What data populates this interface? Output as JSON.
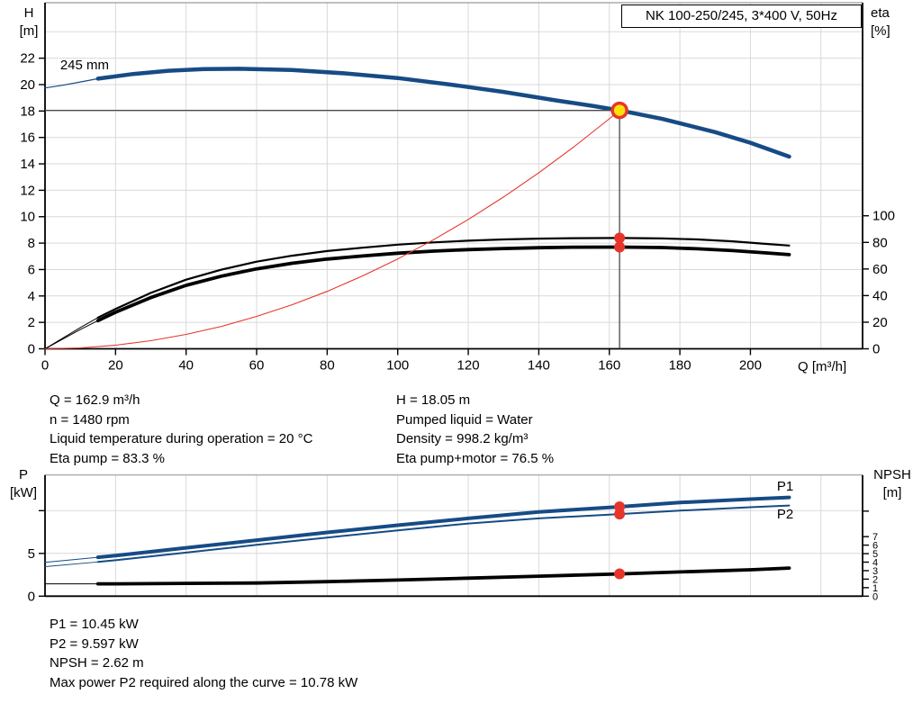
{
  "header": {
    "title": "NK 100-250/245, 3*400 V, 50Hz"
  },
  "axis_labels": {
    "h1": "H",
    "h2": "[m]",
    "eta1": "eta",
    "eta2": "[%]",
    "p1": "P",
    "p2": "[kW]",
    "npsh1": "NPSH",
    "npsh2": "[m]",
    "q": "Q [m³/h]"
  },
  "info_top": {
    "left": [
      "Q = 162.9 m³/h",
      "n = 1480 rpm",
      "Liquid temperature during operation = 20 °C",
      "Eta pump = 83.3 %"
    ],
    "right": [
      "H = 18.05 m",
      "Pumped liquid = Water",
      "Density = 998.2 kg/m³",
      "Eta pump+motor = 76.5 %"
    ]
  },
  "info_bottom": [
    "P1 = 10.45 kW",
    "P2 = 9.597 kW",
    "NPSH = 2.62 m",
    "Max power P2 required along the curve = 10.78 kW"
  ],
  "colors": {
    "blue": "#164b85",
    "black": "#000000",
    "red": "#e6352b",
    "duty_yellow": "#ffe10a",
    "grid": "#d9d9d9",
    "border": "#9b9b9b",
    "crosshair": "#4a4a4a"
  },
  "chart_data": [
    {
      "id": "qh",
      "type": "line",
      "title": "QH and efficiency curves",
      "x": {
        "label": "Q [m³/h]",
        "min": 0,
        "max": 231.8,
        "ticks": [
          [
            0,
            "0"
          ],
          [
            20,
            "20"
          ],
          [
            40,
            "40"
          ],
          [
            60,
            "60"
          ],
          [
            80,
            "80"
          ],
          [
            100,
            "100"
          ],
          [
            120,
            "120"
          ],
          [
            140,
            "140"
          ],
          [
            160,
            "160"
          ],
          [
            180,
            "180"
          ],
          [
            200,
            "200"
          ]
        ],
        "grid": [
          20,
          40,
          60,
          80,
          100,
          120,
          140,
          160,
          180,
          200,
          220
        ]
      },
      "y_left": {
        "label": "H [m]",
        "min": 0,
        "max": 26.2,
        "ticks": [
          [
            0,
            "0"
          ],
          [
            2,
            "2"
          ],
          [
            4,
            "4"
          ],
          [
            6,
            "6"
          ],
          [
            8,
            "8"
          ],
          [
            10,
            "10"
          ],
          [
            12,
            "12"
          ],
          [
            14,
            "14"
          ],
          [
            16,
            "16"
          ],
          [
            18,
            "18"
          ],
          [
            20,
            "20"
          ],
          [
            22,
            "22"
          ]
        ],
        "grid": [
          2,
          4,
          6,
          8,
          10,
          12,
          14,
          16,
          18,
          20,
          22,
          24
        ]
      },
      "y_right": {
        "label": "eta [%]",
        "min": 0,
        "max": 260.2,
        "ticks": [
          [
            0,
            "0"
          ],
          [
            20,
            "20"
          ],
          [
            40,
            "40"
          ],
          [
            60,
            "60"
          ],
          [
            80,
            "80"
          ],
          [
            100,
            "100"
          ]
        ]
      },
      "series": [
        {
          "name": "eta-pump",
          "axis": "right",
          "color": "black",
          "thin_until": 15,
          "w_thin": 1,
          "w_thick": 2.2,
          "points": [
            [
              0,
              0
            ],
            [
              10,
              16
            ],
            [
              15,
              23.5
            ],
            [
              20,
              30
            ],
            [
              30,
              42
            ],
            [
              40,
              52
            ],
            [
              50,
              59.5
            ],
            [
              60,
              65.5
            ],
            [
              70,
              70
            ],
            [
              80,
              73.5
            ],
            [
              90,
              76
            ],
            [
              100,
              78.3
            ],
            [
              110,
              80
            ],
            [
              120,
              81.3
            ],
            [
              130,
              82.2
            ],
            [
              140,
              82.8
            ],
            [
              150,
              83.2
            ],
            [
              162.9,
              83.3
            ],
            [
              175,
              83
            ],
            [
              185,
              82.2
            ],
            [
              195,
              80.8
            ],
            [
              205,
              78.8
            ],
            [
              211,
              77.6
            ]
          ]
        },
        {
          "name": "eta-pump-motor",
          "axis": "right",
          "color": "black",
          "thin_until": 15,
          "w_thin": 1,
          "w_thick": 3.8,
          "points": [
            [
              0,
              0
            ],
            [
              10,
              14.5
            ],
            [
              15,
              21.2
            ],
            [
              20,
              27.5
            ],
            [
              30,
              38.5
            ],
            [
              40,
              47.7
            ],
            [
              50,
              54.6
            ],
            [
              60,
              60.1
            ],
            [
              70,
              64.3
            ],
            [
              80,
              67.5
            ],
            [
              90,
              69.8
            ],
            [
              100,
              71.9
            ],
            [
              110,
              73.4
            ],
            [
              120,
              74.6
            ],
            [
              130,
              75.4
            ],
            [
              140,
              76
            ],
            [
              150,
              76.4
            ],
            [
              162.9,
              76.5
            ],
            [
              175,
              76.1
            ],
            [
              185,
              75.2
            ],
            [
              195,
              73.8
            ],
            [
              205,
              72
            ],
            [
              211,
              70.8
            ]
          ]
        },
        {
          "name": "system-curve",
          "axis": "left",
          "color": "red",
          "w_thick": 1.1,
          "points": [
            [
              0,
              0
            ],
            [
              10,
              0.07
            ],
            [
              20,
              0.27
            ],
            [
              30,
              0.61
            ],
            [
              40,
              1.09
            ],
            [
              50,
              1.7
            ],
            [
              60,
              2.45
            ],
            [
              70,
              3.33
            ],
            [
              80,
              4.35
            ],
            [
              90,
              5.51
            ],
            [
              100,
              6.8
            ],
            [
              110,
              8.23
            ],
            [
              120,
              9.79
            ],
            [
              130,
              11.49
            ],
            [
              140,
              13.33
            ],
            [
              150,
              15.3
            ],
            [
              160,
              17.41
            ],
            [
              162.9,
              18.05
            ]
          ]
        },
        {
          "name": "qh-curve-245mm",
          "axis": "left",
          "color": "blue",
          "thin_until": 15,
          "w_thin": 1.2,
          "w_thick": 4.5,
          "label": "245 mm",
          "label_color": "black",
          "label_q": 4.3,
          "label_v": 21.15,
          "points": [
            [
              0,
              19.75
            ],
            [
              5,
              19.95
            ],
            [
              10,
              20.2
            ],
            [
              15,
              20.45
            ],
            [
              25,
              20.8
            ],
            [
              35,
              21.05
            ],
            [
              45,
              21.18
            ],
            [
              55,
              21.2
            ],
            [
              70,
              21.1
            ],
            [
              85,
              20.85
            ],
            [
              100,
              20.5
            ],
            [
              115,
              20
            ],
            [
              130,
              19.45
            ],
            [
              145,
              18.8
            ],
            [
              155,
              18.4
            ],
            [
              162.9,
              18.05
            ],
            [
              175,
              17.4
            ],
            [
              190,
              16.4
            ],
            [
              200,
              15.6
            ],
            [
              211,
              14.55
            ]
          ]
        }
      ],
      "crosshair": {
        "q": 162.9,
        "value": 18.05
      },
      "markers": [
        {
          "q": 162.9,
          "value": 18.05,
          "axis": "left",
          "style": "duty-point"
        },
        {
          "q": 162.9,
          "value": 83.3,
          "axis": "right",
          "style": "dot"
        },
        {
          "q": 162.9,
          "value": 76.5,
          "axis": "right",
          "style": "dot"
        }
      ]
    },
    {
      "id": "power",
      "type": "line",
      "title": "Power and NPSH curves",
      "x": {
        "label": "",
        "min": 0,
        "max": 231.8,
        "ticks": [],
        "grid": [
          20,
          40,
          60,
          80,
          100,
          120,
          140,
          160,
          180,
          200,
          220
        ]
      },
      "y_left": {
        "label": "P [kW]",
        "min": 0,
        "max": 14.17,
        "ticks": [
          [
            0,
            "0"
          ],
          [
            5,
            "5"
          ],
          [
            10,
            ""
          ]
        ],
        "grid": [
          5,
          10
        ]
      },
      "y_right": {
        "label": "NPSH [m]",
        "min": 0,
        "max": 14.25,
        "small_ticks": true,
        "ticks": [
          [
            0,
            "0"
          ],
          [
            1,
            "1"
          ],
          [
            2,
            "2"
          ],
          [
            3,
            "3"
          ],
          [
            4,
            "4"
          ],
          [
            5,
            "5"
          ],
          [
            6,
            "6"
          ],
          [
            7,
            "7"
          ],
          [
            10,
            ""
          ]
        ]
      },
      "series": [
        {
          "name": "npsh",
          "axis": "right",
          "color": "black",
          "thin_until": 15,
          "w_thin": 1,
          "w_thick": 3.8,
          "points": [
            [
              0,
              1.45
            ],
            [
              15,
              1.45
            ],
            [
              20,
              1.45
            ],
            [
              40,
              1.5
            ],
            [
              60,
              1.55
            ],
            [
              80,
              1.7
            ],
            [
              100,
              1.9
            ],
            [
              120,
              2.12
            ],
            [
              140,
              2.35
            ],
            [
              162.9,
              2.62
            ],
            [
              180,
              2.85
            ],
            [
              200,
              3.1
            ],
            [
              211,
              3.3
            ]
          ]
        },
        {
          "name": "p2",
          "axis": "left",
          "color": "blue",
          "thin_until": 15,
          "w_thin": 0.9,
          "w_thick": 2,
          "label": "P2",
          "label_color": "blue",
          "label_q": 207.5,
          "label_v": 9.08,
          "points": [
            [
              0,
              3.45
            ],
            [
              15,
              4
            ],
            [
              20,
              4.2
            ],
            [
              40,
              5.1
            ],
            [
              60,
              6
            ],
            [
              80,
              6.85
            ],
            [
              100,
              7.7
            ],
            [
              120,
              8.5
            ],
            [
              140,
              9.1
            ],
            [
              162.9,
              9.597
            ],
            [
              180,
              10
            ],
            [
              200,
              10.4
            ],
            [
              211,
              10.6
            ]
          ]
        },
        {
          "name": "p1",
          "axis": "left",
          "color": "blue",
          "thin_until": 15,
          "w_thin": 1,
          "w_thick": 4,
          "label": "P1",
          "label_color": "blue",
          "label_q": 207.5,
          "label_v": 12.35,
          "points": [
            [
              0,
              3.95
            ],
            [
              15,
              4.55
            ],
            [
              20,
              4.75
            ],
            [
              40,
              5.65
            ],
            [
              60,
              6.55
            ],
            [
              80,
              7.45
            ],
            [
              100,
              8.3
            ],
            [
              120,
              9.1
            ],
            [
              140,
              9.85
            ],
            [
              162.9,
              10.45
            ],
            [
              180,
              10.95
            ],
            [
              200,
              11.35
            ],
            [
              211,
              11.55
            ]
          ]
        }
      ],
      "markers": [
        {
          "q": 162.9,
          "value": 10.45,
          "axis": "left",
          "style": "dot"
        },
        {
          "q": 162.9,
          "value": 9.597,
          "axis": "left",
          "style": "dot"
        },
        {
          "q": 162.9,
          "value": 2.62,
          "axis": "right",
          "style": "dot"
        }
      ]
    }
  ]
}
